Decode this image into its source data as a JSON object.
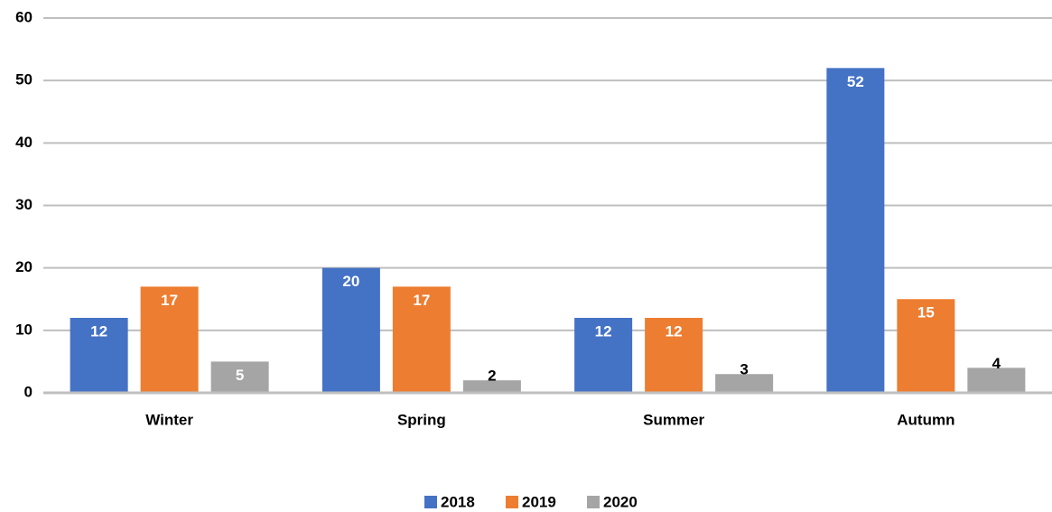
{
  "chart_data": {
    "type": "bar",
    "categories": [
      "Winter",
      "Spring",
      "Summer",
      "Autumn"
    ],
    "series": [
      {
        "name": "2018",
        "color": "#4472c4",
        "values": [
          12,
          20,
          12,
          52
        ]
      },
      {
        "name": "2019",
        "color": "#ed7d31",
        "values": [
          17,
          17,
          12,
          15
        ]
      },
      {
        "name": "2020",
        "color": "#a5a5a5",
        "values": [
          5,
          2,
          3,
          4
        ]
      }
    ],
    "ylim": [
      0,
      60
    ],
    "yticks": [
      0,
      10,
      20,
      30,
      40,
      50,
      60
    ],
    "grid": true,
    "legend": "bottom"
  }
}
